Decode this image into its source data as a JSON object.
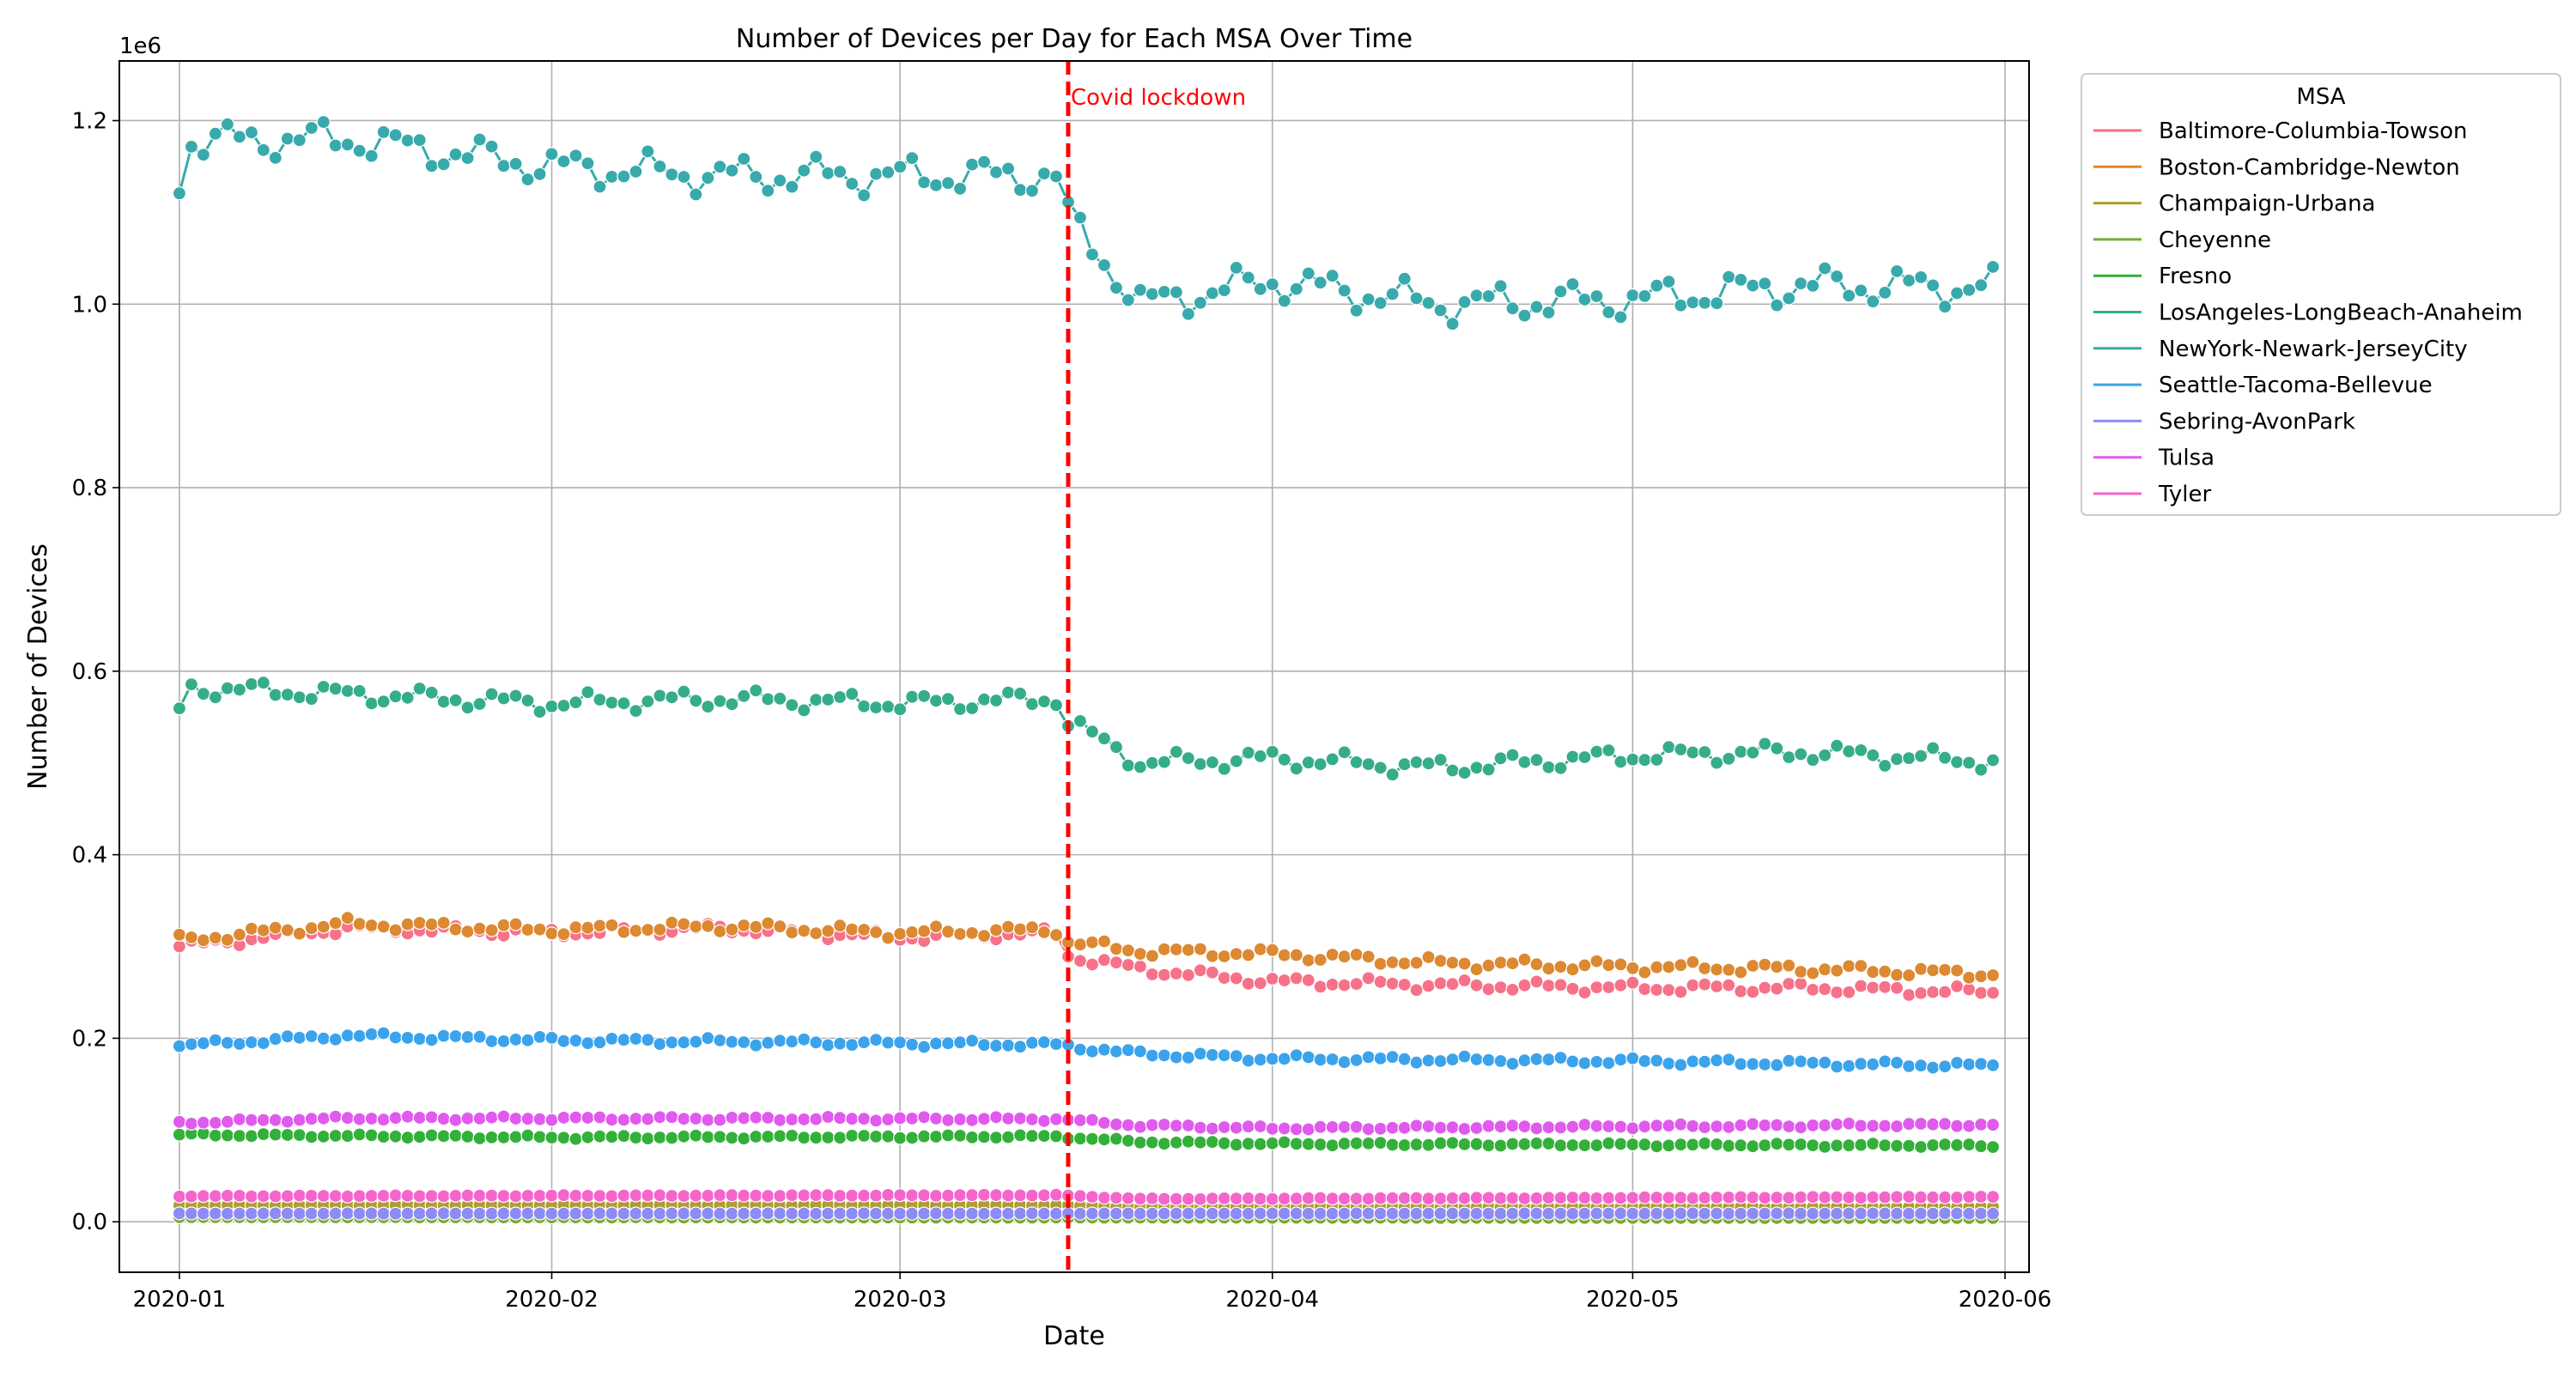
{
  "chart_data": {
    "type": "line",
    "title": "Number of Devices per Day for Each MSA Over Time",
    "xlabel": "Date",
    "ylabel": "Number of Devices",
    "y_offset_label": "1e6",
    "x_range": [
      "2019-12-27",
      "2020-06-03"
    ],
    "ylim": [
      -0.055,
      1.265
    ],
    "x_tick_labels": [
      "2020-01",
      "2020-02",
      "2020-03",
      "2020-04",
      "2020-05",
      "2020-06"
    ],
    "x_tick_dates": [
      "2020-01-01",
      "2020-02-01",
      "2020-03-01",
      "2020-04-01",
      "2020-05-01",
      "2020-06-01"
    ],
    "y_ticks": [
      0.0,
      0.2,
      0.4,
      0.6,
      0.8,
      1.0,
      1.2
    ],
    "y_tick_labels": [
      "0.0",
      "0.2",
      "0.4",
      "0.6",
      "0.8",
      "1.0",
      "1.2"
    ],
    "grid": true,
    "legend": {
      "title": "MSA",
      "placement": "outside-top-right"
    },
    "annotation": {
      "date": "2020-03-15",
      "label": "Covid lockdown",
      "color": "#ff0000",
      "style": "dashed"
    },
    "series": [
      {
        "name": "Baltimore-Columbia-Towson",
        "color": "#f77189",
        "keypoints": [
          [
            "2020-01-01",
            0.3
          ],
          [
            "2020-01-15",
            0.32
          ],
          [
            "2020-02-01",
            0.315
          ],
          [
            "2020-02-15",
            0.32
          ],
          [
            "2020-03-01",
            0.31
          ],
          [
            "2020-03-14",
            0.315
          ],
          [
            "2020-03-15",
            0.29
          ],
          [
            "2020-03-21",
            0.275
          ],
          [
            "2020-04-01",
            0.262
          ],
          [
            "2020-04-15",
            0.258
          ],
          [
            "2020-05-01",
            0.255
          ],
          [
            "2020-05-15",
            0.255
          ],
          [
            "2020-05-31",
            0.25
          ]
        ]
      },
      {
        "name": "Boston-Cambridge-Newton",
        "color": "#dc8932",
        "keypoints": [
          [
            "2020-01-01",
            0.307
          ],
          [
            "2020-01-15",
            0.325
          ],
          [
            "2020-02-01",
            0.318
          ],
          [
            "2020-02-15",
            0.322
          ],
          [
            "2020-03-01",
            0.315
          ],
          [
            "2020-03-14",
            0.318
          ],
          [
            "2020-03-15",
            0.305
          ],
          [
            "2020-03-21",
            0.295
          ],
          [
            "2020-04-01",
            0.292
          ],
          [
            "2020-04-15",
            0.282
          ],
          [
            "2020-05-01",
            0.278
          ],
          [
            "2020-05-15",
            0.276
          ],
          [
            "2020-05-31",
            0.27
          ]
        ]
      },
      {
        "name": "Champaign-Urbana",
        "color": "#ae9d31",
        "keypoints": [
          [
            "2020-01-01",
            0.018
          ],
          [
            "2020-03-14",
            0.018
          ],
          [
            "2020-03-21",
            0.016
          ],
          [
            "2020-05-31",
            0.016
          ]
        ]
      },
      {
        "name": "Cheyenne",
        "color": "#77ab31",
        "keypoints": [
          [
            "2020-01-01",
            0.005
          ],
          [
            "2020-05-31",
            0.004
          ]
        ]
      },
      {
        "name": "Fresno",
        "color": "#33b039",
        "keypoints": [
          [
            "2020-01-01",
            0.095
          ],
          [
            "2020-02-01",
            0.092
          ],
          [
            "2020-03-14",
            0.093
          ],
          [
            "2020-03-21",
            0.087
          ],
          [
            "2020-04-01",
            0.085
          ],
          [
            "2020-05-31",
            0.083
          ]
        ]
      },
      {
        "name": "LosAngeles-LongBeach-Anaheim",
        "color": "#36ad8a",
        "keypoints": [
          [
            "2020-01-01",
            0.558
          ],
          [
            "2020-01-02",
            0.582
          ],
          [
            "2020-01-15",
            0.575
          ],
          [
            "2020-02-01",
            0.565
          ],
          [
            "2020-02-15",
            0.57
          ],
          [
            "2020-03-01",
            0.565
          ],
          [
            "2020-03-14",
            0.57
          ],
          [
            "2020-03-15",
            0.545
          ],
          [
            "2020-03-21",
            0.5
          ],
          [
            "2020-04-01",
            0.505
          ],
          [
            "2020-04-15",
            0.495
          ],
          [
            "2020-05-01",
            0.508
          ],
          [
            "2020-05-15",
            0.512
          ],
          [
            "2020-05-31",
            0.502
          ]
        ]
      },
      {
        "name": "NewYork-Newark-JerseyCity",
        "color": "#38aaac",
        "keypoints": [
          [
            "2020-01-01",
            1.133
          ],
          [
            "2020-01-02",
            1.178
          ],
          [
            "2020-01-15",
            1.18
          ],
          [
            "2020-02-01",
            1.15
          ],
          [
            "2020-02-15",
            1.14
          ],
          [
            "2020-03-01",
            1.14
          ],
          [
            "2020-03-14",
            1.14
          ],
          [
            "2020-03-15",
            1.095
          ],
          [
            "2020-03-21",
            1.0
          ],
          [
            "2020-04-01",
            1.025
          ],
          [
            "2020-04-15",
            1.0
          ],
          [
            "2020-05-01",
            1.005
          ],
          [
            "2020-05-15",
            1.02
          ],
          [
            "2020-05-31",
            1.018
          ]
        ]
      },
      {
        "name": "Seattle-Tacoma-Bellevue",
        "color": "#3ba3ec",
        "keypoints": [
          [
            "2020-01-01",
            0.192
          ],
          [
            "2020-01-15",
            0.203
          ],
          [
            "2020-02-01",
            0.198
          ],
          [
            "2020-03-14",
            0.193
          ],
          [
            "2020-03-21",
            0.183
          ],
          [
            "2020-04-01",
            0.178
          ],
          [
            "2020-05-01",
            0.175
          ],
          [
            "2020-05-31",
            0.17
          ]
        ]
      },
      {
        "name": "Sebring-AvonPark",
        "color": "#8e8bf5",
        "keypoints": [
          [
            "2020-01-01",
            0.009
          ],
          [
            "2020-05-31",
            0.009
          ]
        ]
      },
      {
        "name": "Tulsa",
        "color": "#e15aee",
        "keypoints": [
          [
            "2020-01-01",
            0.108
          ],
          [
            "2020-01-15",
            0.113
          ],
          [
            "2020-03-14",
            0.112
          ],
          [
            "2020-03-21",
            0.105
          ],
          [
            "2020-04-01",
            0.102
          ],
          [
            "2020-05-31",
            0.106
          ]
        ]
      },
      {
        "name": "Tyler",
        "color": "#f565cc",
        "keypoints": [
          [
            "2020-01-01",
            0.028
          ],
          [
            "2020-03-14",
            0.029
          ],
          [
            "2020-03-21",
            0.025
          ],
          [
            "2020-05-31",
            0.027
          ]
        ]
      }
    ]
  }
}
